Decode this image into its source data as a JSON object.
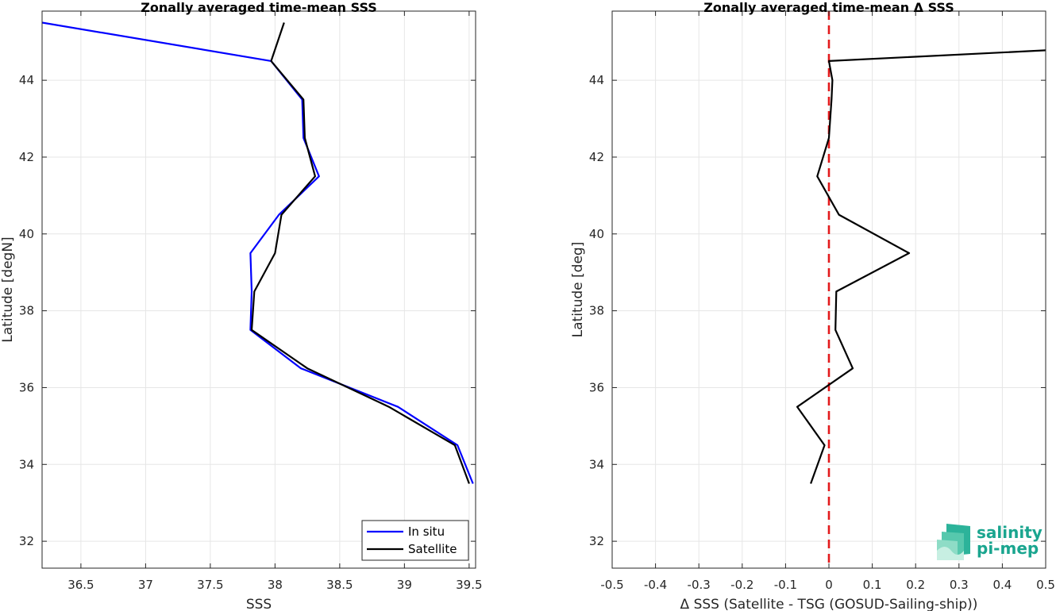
{
  "chart_data": [
    {
      "type": "line",
      "title": "Zonally averaged time-mean SSS",
      "xlabel": "SSS",
      "ylabel": "Latitude [degN]",
      "xlim": [
        36.2,
        39.55
      ],
      "ylim": [
        31.3,
        45.8
      ],
      "xticks": [
        36.5,
        37,
        37.5,
        38,
        38.5,
        39,
        39.5
      ],
      "xtick_labels": [
        "36.5",
        "37",
        "37.5",
        "38",
        "38.5",
        "39",
        "39.5"
      ],
      "yticks": [
        32,
        34,
        36,
        38,
        40,
        42,
        44
      ],
      "ytick_labels": [
        "32",
        "34",
        "36",
        "38",
        "40",
        "42",
        "44"
      ],
      "grid": true,
      "legend": "bottom-right",
      "series": [
        {
          "name": "In situ",
          "color": "#0000ff",
          "x": [
            36.2,
            37.97,
            38.21,
            38.22,
            38.34,
            38.03,
            37.81,
            37.82,
            37.81,
            38.2,
            38.95,
            39.41,
            39.53
          ],
          "y": [
            45.5,
            44.5,
            43.5,
            42.5,
            41.5,
            40.5,
            39.5,
            38.5,
            37.5,
            36.5,
            35.5,
            34.5,
            33.5
          ]
        },
        {
          "name": "Satellite",
          "color": "#000000",
          "x": [
            38.07,
            37.97,
            38.22,
            38.23,
            38.31,
            38.05,
            38.0,
            37.84,
            37.82,
            38.25,
            38.88,
            39.39,
            39.5
          ],
          "y": [
            45.5,
            44.5,
            43.5,
            42.5,
            41.5,
            40.5,
            39.5,
            38.5,
            37.5,
            36.5,
            35.5,
            34.5,
            33.5
          ]
        }
      ]
    },
    {
      "type": "line",
      "title": "Zonally averaged time-mean Δ SSS",
      "xlabel": "Δ SSS (Satellite - TSG (GOSUD-Sailing-ship))",
      "ylabel": "Latitude [deg]",
      "xlim": [
        -0.5,
        0.5
      ],
      "ylim": [
        31.3,
        45.8
      ],
      "xticks": [
        -0.5,
        -0.4,
        -0.3,
        -0.2,
        -0.1,
        0,
        0.1,
        0.2,
        0.3,
        0.4,
        0.5
      ],
      "xtick_labels": [
        "-0.5",
        "-0.4",
        "-0.3",
        "-0.2",
        "-0.1",
        "0",
        "0.1",
        "0.2",
        "0.3",
        "0.4",
        "0.5"
      ],
      "yticks": [
        32,
        34,
        36,
        38,
        40,
        42,
        44
      ],
      "ytick_labels": [
        "32",
        "34",
        "36",
        "38",
        "40",
        "42",
        "44"
      ],
      "grid": true,
      "series": [
        {
          "color": "#000000",
          "x": [
            0.5,
            0.0,
            0.008,
            0.006,
            0.0,
            -0.027,
            0.023,
            0.185,
            0.017,
            0.015,
            0.055,
            -0.073,
            -0.01,
            -0.042
          ],
          "y": [
            44.78,
            44.5,
            44.0,
            43.5,
            42.5,
            41.5,
            40.5,
            39.5,
            38.5,
            37.5,
            36.5,
            35.5,
            34.5,
            33.5
          ]
        }
      ],
      "reference_line": {
        "x": 0,
        "color": "#e31a1c",
        "style": "dashed"
      }
    }
  ],
  "logo": {
    "line1": "salinity",
    "line2": "pi-mep",
    "color": "#1aa58f"
  }
}
